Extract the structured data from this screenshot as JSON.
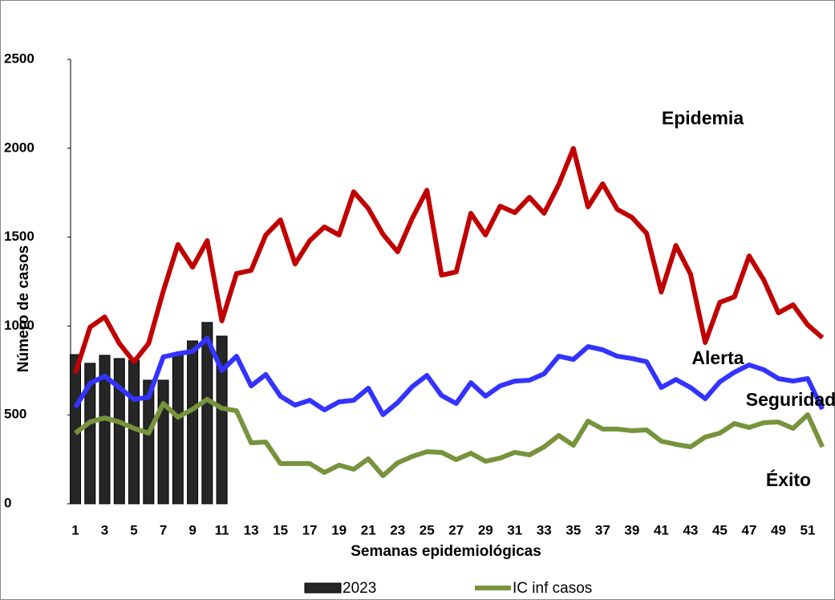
{
  "chart_data": {
    "type": "line",
    "x_label": "Semanas epidemiológicas",
    "y_label": "Número de casos",
    "categories": [
      1,
      null,
      3,
      null,
      5,
      null,
      7,
      null,
      9,
      null,
      11,
      null,
      13,
      null,
      15,
      null,
      17,
      null,
      19,
      null,
      21,
      null,
      23,
      null,
      25,
      null,
      27,
      null,
      29,
      null,
      31,
      null,
      33,
      null,
      35,
      null,
      37,
      null,
      39,
      null,
      41,
      null,
      43,
      null,
      45,
      null,
      47,
      null,
      49,
      null,
      51,
      null
    ],
    "ylim": [
      0,
      2500
    ],
    "yticks": [
      0,
      500,
      1000,
      1500,
      2000,
      2500
    ],
    "grid": false,
    "annotations": [
      "Epidemia",
      "Alerta",
      "Seguridad",
      "Éxito"
    ],
    "series": [
      {
        "name": "2023",
        "type": "bar",
        "color": "#262626",
        "values": [
          839,
          790,
          835,
          817,
          808,
          695,
          695,
          835,
          916,
          1020,
          943,
          null,
          null,
          null,
          null,
          null,
          null,
          null,
          null,
          null,
          null,
          null,
          null,
          null,
          null,
          null,
          null,
          null,
          null,
          null,
          null,
          null,
          null,
          null,
          null,
          null,
          null,
          null,
          null,
          null,
          null,
          null,
          null,
          null,
          null,
          null,
          null,
          null,
          null,
          null,
          null,
          null
        ]
      },
      {
        "type": "line",
        "color": "#c00000",
        "values": [
          735,
          993,
          1051,
          902,
          799,
          902,
          1196,
          1458,
          1331,
          1480,
          1029,
          1295,
          1313,
          1512,
          1597,
          1349,
          1480,
          1557,
          1512,
          1755,
          1661,
          1516,
          1417,
          1606,
          1764,
          1286,
          1304,
          1634,
          1512,
          1674,
          1638,
          1724,
          1634,
          1796,
          1999,
          1670,
          1800,
          1656,
          1611,
          1521,
          1191,
          1453,
          1291,
          907,
          1133,
          1164,
          1394,
          1259,
          1074,
          1119,
          1006,
          934
        ]
      },
      {
        "type": "line",
        "color": "#3333ff",
        "values": [
          542,
          677,
          718,
          654,
          587,
          600,
          826,
          844,
          857,
          930,
          749,
          830,
          663,
          727,
          605,
          555,
          582,
          528,
          573,
          582,
          650,
          501,
          569,
          659,
          722,
          609,
          564,
          681,
          605,
          663,
          690,
          695,
          731,
          830,
          812,
          884,
          866,
          830,
          817,
          799,
          654,
          699,
          654,
          591,
          686,
          740,
          781,
          754,
          704,
          690,
          704,
          532
        ]
      },
      {
        "name": "IC inf casos",
        "type": "line",
        "color": "#77933c",
        "values": [
          397,
          460,
          483,
          460,
          424,
          397,
          564,
          487,
          532,
          587,
          537,
          523,
          343,
          347,
          226,
          226,
          226,
          176,
          217,
          194,
          253,
          158,
          230,
          266,
          293,
          289,
          248,
          284,
          239,
          257,
          289,
          275,
          320,
          384,
          329,
          465,
          420,
          420,
          411,
          415,
          352,
          334,
          320,
          375,
          397,
          451,
          429,
          456,
          460,
          424,
          501,
          320
        ]
      }
    ]
  }
}
